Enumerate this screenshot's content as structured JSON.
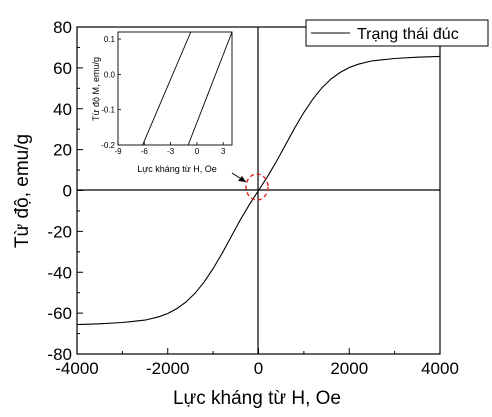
{
  "chart_data": {
    "type": "line",
    "xlabel": "Lực kháng từ H, Oe",
    "ylabel": "Từ độ, emu/g",
    "xlim": [
      -4000,
      4000
    ],
    "ylim": [
      -80,
      80
    ],
    "xticks": [
      "-4000",
      "-2000",
      "0",
      "2000",
      "4000"
    ],
    "yticks": [
      "80",
      "60",
      "40",
      "20",
      "0",
      "-20",
      "-40",
      "-60",
      "-80"
    ],
    "grid": false,
    "legend_position": "top-right",
    "series": [
      {
        "name": "Trạng thái đúc",
        "color": "#000000",
        "x": [
          -4000,
          -3500,
          -3000,
          -2500,
          -2200,
          -2000,
          -1800,
          -1600,
          -1400,
          -1200,
          -1000,
          -800,
          -600,
          -400,
          -200,
          0,
          200,
          400,
          600,
          800,
          1000,
          1200,
          1400,
          1600,
          1800,
          2000,
          2200,
          2500,
          3000,
          3500,
          4000
        ],
        "y": [
          -65.6,
          -65.2,
          -64.6,
          -63.4,
          -61.8,
          -60.2,
          -57.8,
          -54.6,
          -50.3,
          -44.8,
          -38.2,
          -30.7,
          -22.5,
          -14.4,
          -6.9,
          0.0,
          6.9,
          14.4,
          22.5,
          30.7,
          38.2,
          44.8,
          50.3,
          54.6,
          57.8,
          60.2,
          61.8,
          63.4,
          64.6,
          65.2,
          65.6
        ]
      }
    ],
    "inset": {
      "xlabel": "Lực kháng từ H, Oe",
      "ylabel": "Từ độ M, emu/g",
      "xlim": [
        -9,
        4
      ],
      "ylim": [
        -0.2,
        0.12
      ],
      "xticks": [
        "-9",
        "-6",
        "-3",
        "0",
        "3"
      ],
      "yticks": [
        "0.1",
        "0.0",
        "-0.1",
        "-0.2"
      ],
      "branches": [
        {
          "x": [
            -6.2,
            -0.7
          ],
          "y": [
            -0.2,
            0.12
          ]
        },
        {
          "x": [
            -1.0,
            4.0
          ],
          "y": [
            -0.2,
            0.12
          ]
        }
      ]
    }
  }
}
